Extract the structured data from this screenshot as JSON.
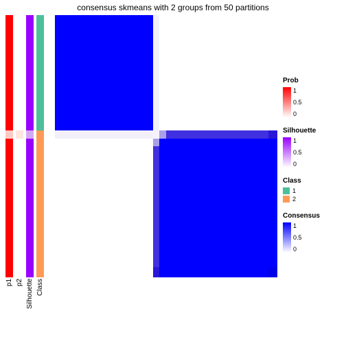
{
  "title": "consensus skmeans with 2 groups from 50 partitions",
  "annotation_tracks": [
    {
      "name": "p1",
      "segments": [
        {
          "frac": 0.44,
          "color": "#ff0000"
        },
        {
          "frac": 0.03,
          "color": "#fccac3"
        },
        {
          "frac": 0.53,
          "color": "#ff0000"
        }
      ]
    },
    {
      "name": "p2",
      "segments": [
        {
          "frac": 0.44,
          "color": "#ffffff"
        },
        {
          "frac": 0.03,
          "color": "#ffe5e0"
        },
        {
          "frac": 0.53,
          "color": "#ffffff"
        }
      ]
    },
    {
      "name": "Silhouette",
      "segments": [
        {
          "frac": 0.44,
          "color": "#9900ff"
        },
        {
          "frac": 0.03,
          "color": "#d3a8f5"
        },
        {
          "frac": 0.53,
          "color": "#9900ff"
        }
      ]
    },
    {
      "name": "Class",
      "segments": [
        {
          "frac": 0.44,
          "color": "#4dbf99"
        },
        {
          "frac": 0.56,
          "color": "#ff9955"
        }
      ]
    }
  ],
  "heatmap": {
    "rows": [
      {
        "frac": 0.44,
        "cells": [
          {
            "frac": 0.44,
            "color": "#0000ff"
          },
          {
            "frac": 0.03,
            "color": "#f3f0fa"
          },
          {
            "frac": 0.53,
            "color": "#ffffff"
          }
        ]
      },
      {
        "frac": 0.03,
        "cells": [
          {
            "frac": 0.44,
            "color": "#f3f0fa"
          },
          {
            "frac": 0.03,
            "color": "#f5f2fb"
          },
          {
            "frac": 0.03,
            "color": "#a8a0e8"
          },
          {
            "frac": 0.46,
            "color": "#4030e0"
          },
          {
            "frac": 0.04,
            "color": "#2818d8"
          }
        ]
      },
      {
        "frac": 0.03,
        "cells": [
          {
            "frac": 0.44,
            "color": "#ffffff"
          },
          {
            "frac": 0.03,
            "color": "#a8a0e8"
          },
          {
            "frac": 0.53,
            "color": "#0000ff"
          }
        ]
      },
      {
        "frac": 0.46,
        "cells": [
          {
            "frac": 0.44,
            "color": "#ffffff"
          },
          {
            "frac": 0.03,
            "color": "#4030e0"
          },
          {
            "frac": 0.53,
            "color": "#0000ff"
          }
        ]
      },
      {
        "frac": 0.04,
        "cells": [
          {
            "frac": 0.44,
            "color": "#ffffff"
          },
          {
            "frac": 0.03,
            "color": "#2818d8"
          },
          {
            "frac": 0.49,
            "color": "#0000ff"
          },
          {
            "frac": 0.04,
            "color": "#0000e8"
          }
        ]
      }
    ]
  },
  "legends": {
    "prob": {
      "title": "Prob",
      "ticks": [
        "1",
        "0.5",
        "0"
      ],
      "gradient_top": "#ff0000",
      "gradient_bottom": "#ffffff"
    },
    "silhouette": {
      "title": "Silhouette",
      "ticks": [
        "1",
        "0.5",
        "0"
      ],
      "gradient_top": "#9900ff",
      "gradient_bottom": "#ffffff"
    },
    "class": {
      "title": "Class",
      "items": [
        {
          "label": "1",
          "color": "#4dbf99"
        },
        {
          "label": "2",
          "color": "#ff9955"
        }
      ]
    },
    "consensus": {
      "title": "Consensus",
      "ticks": [
        "1",
        "0.5",
        "0"
      ],
      "gradient_top": "#0000ff",
      "gradient_bottom": "#ffffff"
    }
  }
}
